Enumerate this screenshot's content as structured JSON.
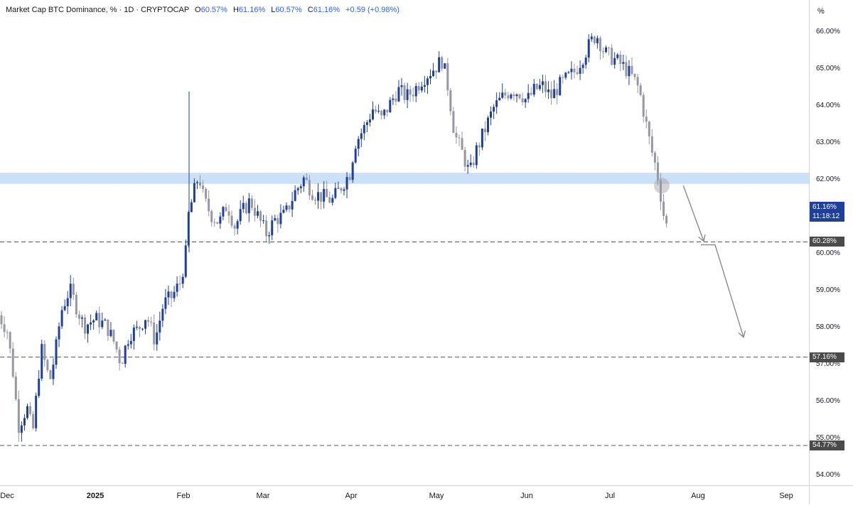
{
  "header": {
    "symbol": "Market Cap BTC Dominance, % · 1D · CRYPTOCAP",
    "open_label": "O",
    "open": "60.57%",
    "high_label": "H",
    "high": "61.16%",
    "low_label": "L",
    "low": "60.57%",
    "close_label": "C",
    "close": "61.16%",
    "change": "+0.59 (+0.98%)"
  },
  "price_scale": {
    "unit": "%",
    "ticks": [
      "66.00%",
      "65.00%",
      "64.00%",
      "63.00%",
      "62.00%",
      "60.00%",
      "59.00%",
      "58.00%",
      "57.00%",
      "56.00%",
      "55.00%",
      "54.00%"
    ],
    "current_price": "61.16%",
    "countdown": "11:18:12",
    "levels": [
      "60.28%",
      "57.16%",
      "54.77%"
    ]
  },
  "time_scale": {
    "labels": [
      "Dec",
      "2025",
      "Feb",
      "Mar",
      "Apr",
      "May",
      "Jun",
      "Jul",
      "Aug",
      "Sep"
    ]
  },
  "colors": {
    "up": "#1e3f9c",
    "down": "#9598a1",
    "zone": "#bbd6f5",
    "level_line": "#555555",
    "arrow": "#8a8a8a"
  },
  "chart_data": {
    "type": "candlestick",
    "title": "Market Cap BTC Dominance, %",
    "ylim": [
      54,
      66.2
    ],
    "resistance_zone": [
      61.85,
      62.15
    ],
    "horizontal_levels": [
      60.28,
      57.16,
      54.77
    ],
    "projection_arrows": [
      {
        "from": [
          "Jul 26",
          61.8
        ],
        "to": [
          "Aug 3",
          60.3
        ]
      },
      {
        "from": [
          "Aug 2",
          60.2
        ],
        "to": [
          "Aug 17",
          57.7
        ]
      }
    ],
    "close_path": [
      [
        "Nov 28",
        58.3
      ],
      [
        "Dec 1",
        57.9
      ],
      [
        "Dec 3",
        56.8
      ],
      [
        "Dec 5",
        55.3
      ],
      [
        "Dec 8",
        55.8
      ],
      [
        "Dec 10",
        55.1
      ],
      [
        "Dec 13",
        57.4
      ],
      [
        "Dec 16",
        56.5
      ],
      [
        "Dec 18",
        57.3
      ],
      [
        "Dec 20",
        58.4
      ],
      [
        "Dec 23",
        59.0
      ],
      [
        "Dec 25",
        58.6
      ],
      [
        "Dec 28",
        58.0
      ],
      [
        "Jan 1",
        58.2
      ],
      [
        "Jan 5",
        58.0
      ],
      [
        "Jan 8",
        57.5
      ],
      [
        "Jan 10",
        57.0
      ],
      [
        "Jan 13",
        57.8
      ],
      [
        "Jan 16",
        57.9
      ],
      [
        "Jan 19",
        58.3
      ],
      [
        "Jan 22",
        57.6
      ],
      [
        "Jan 25",
        58.6
      ],
      [
        "Jan 28",
        58.8
      ],
      [
        "Jan 31",
        59.2
      ],
      [
        "Feb 2",
        60.0
      ],
      [
        "Feb 3",
        61.0
      ],
      [
        "Feb 5",
        61.6
      ],
      [
        "Feb 7",
        62.1
      ],
      [
        "Feb 9",
        61.4
      ],
      [
        "Feb 12",
        61.0
      ],
      [
        "Feb 15",
        60.8
      ],
      [
        "Feb 18",
        61.3
      ],
      [
        "Feb 21",
        60.7
      ],
      [
        "Feb 24",
        61.1
      ],
      [
        "Feb 27",
        61.4
      ],
      [
        "Mar 2",
        60.5
      ],
      [
        "Mar 5",
        60.9
      ],
      [
        "Mar 8",
        61.0
      ],
      [
        "Mar 11",
        61.6
      ],
      [
        "Mar 14",
        62.0
      ],
      [
        "Mar 17",
        61.6
      ],
      [
        "Mar 20",
        61.5
      ],
      [
        "Mar 23",
        61.4
      ],
      [
        "Mar 26",
        61.8
      ],
      [
        "Mar 29",
        62.2
      ],
      [
        "Apr 2",
        62.9
      ],
      [
        "Apr 6",
        63.4
      ],
      [
        "Apr 9",
        63.9
      ],
      [
        "Apr 12",
        63.6
      ],
      [
        "Apr 15",
        64.0
      ],
      [
        "Apr 18",
        64.4
      ],
      [
        "Apr 21",
        64.2
      ],
      [
        "Apr 24",
        64.4
      ],
      [
        "Apr 27",
        64.7
      ],
      [
        "Apr 30",
        64.9
      ],
      [
        "May 3",
        65.2
      ],
      [
        "May 5",
        64.4
      ],
      [
        "May 7",
        63.2
      ],
      [
        "May 10",
        62.6
      ],
      [
        "May 12",
        62.1
      ],
      [
        "May 14",
        62.7
      ],
      [
        "May 17",
        63.3
      ],
      [
        "May 20",
        63.9
      ],
      [
        "May 23",
        64.2
      ],
      [
        "May 26",
        64.4
      ],
      [
        "May 29",
        64.3
      ],
      [
        "Jun 1",
        64.1
      ],
      [
        "Jun 4",
        64.4
      ],
      [
        "Jun 7",
        64.5
      ],
      [
        "Jun 10",
        64.2
      ],
      [
        "Jun 13",
        64.5
      ],
      [
        "Jun 16",
        64.7
      ],
      [
        "Jun 19",
        64.9
      ],
      [
        "Jun 22",
        65.3
      ],
      [
        "Jun 25",
        65.7
      ],
      [
        "Jun 27",
        65.9
      ],
      [
        "Jun 30",
        65.4
      ],
      [
        "Jul 3",
        65.2
      ],
      [
        "Jul 6",
        65.0
      ],
      [
        "Jul 9",
        64.7
      ],
      [
        "Jul 11",
        64.4
      ],
      [
        "Jul 13",
        63.6
      ],
      [
        "Jul 15",
        62.8
      ],
      [
        "Jul 17",
        62.2
      ],
      [
        "Jul 18",
        61.7
      ],
      [
        "Jul 19",
        61.2
      ],
      [
        "Jul 20",
        60.57
      ],
      [
        "Jul 21",
        61.16
      ]
    ]
  }
}
